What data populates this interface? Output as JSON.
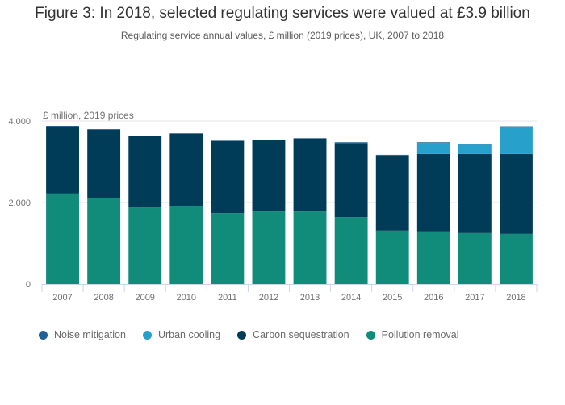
{
  "chart_data": {
    "type": "bar",
    "stacked": true,
    "title": "Figure 3: In 2018, selected regulating services were valued at £3.9 billion",
    "subtitle": "Regulating service annual values, £ million (2019 prices), UK, 2007 to 2018",
    "ylabel": "£ million, 2019 prices",
    "xlabel": "",
    "ylim": [
      0,
      4000
    ],
    "yticks": [
      0,
      2000,
      4000
    ],
    "ytick_labels": [
      "0",
      "2,000",
      "4,000"
    ],
    "grid": true,
    "legend_position": "bottom-left",
    "categories": [
      "2007",
      "2008",
      "2009",
      "2010",
      "2011",
      "2012",
      "2013",
      "2014",
      "2015",
      "2016",
      "2017",
      "2018"
    ],
    "series": [
      {
        "name": "Pollution removal",
        "color": "#118c7b",
        "values": [
          2220,
          2100,
          1880,
          1920,
          1740,
          1780,
          1780,
          1640,
          1310,
          1290,
          1250,
          1230
        ]
      },
      {
        "name": "Carbon sequestration",
        "color": "#003c57",
        "values": [
          1650,
          1690,
          1750,
          1770,
          1770,
          1755,
          1790,
          1820,
          1840,
          1900,
          1940,
          1960
        ]
      },
      {
        "name": "Urban cooling",
        "color": "#27a0cc",
        "values": [
          0,
          0,
          0,
          0,
          0,
          0,
          0,
          0,
          0,
          270,
          230,
          660
        ]
      },
      {
        "name": "Noise mitigation",
        "color": "#206095",
        "values": [
          10,
          10,
          10,
          10,
          10,
          10,
          10,
          20,
          20,
          20,
          20,
          20
        ]
      }
    ],
    "legend_order": [
      "Noise mitigation",
      "Urban cooling",
      "Carbon sequestration",
      "Pollution removal"
    ]
  }
}
